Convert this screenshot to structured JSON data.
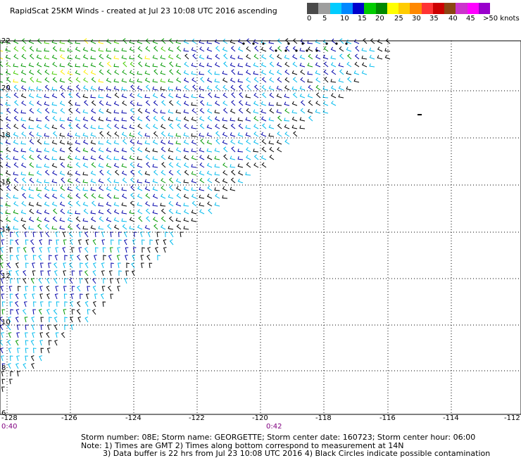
{
  "title": "RapidScat 25KM Winds - created at Jul 23 10:08 UTC 2016 ascending",
  "legend": {
    "colors": [
      "#4a4a4a",
      "#9e9e9e",
      "#00ccff",
      "#0088ff",
      "#0000cc",
      "#00cc00",
      "#008800",
      "#ffff00",
      "#ffcc00",
      "#ff8800",
      "#ff3333",
      "#cc0000",
      "#8b4513",
      "#cc33cc",
      "#ff00ff",
      "#9900cc"
    ],
    "ticks": [
      "0",
      "5",
      "10",
      "15",
      "20",
      "25",
      "30",
      "35",
      "40",
      "45",
      ">50 knots"
    ]
  },
  "map": {
    "lat_labels": [
      "22",
      "20",
      "18",
      "16",
      "14",
      "12",
      "10",
      "8",
      "6"
    ],
    "lon_labels": [
      "-128",
      "-126",
      "-124",
      "-122",
      "-120",
      "-118",
      "-116",
      "-114",
      "-112"
    ],
    "time_labels": [
      "0:40",
      "0:42"
    ],
    "barb_colors": [
      "#000000",
      "#00bbee",
      "#0000aa",
      "#009900",
      "#44cc00",
      "#ffee00"
    ],
    "contamination_color": "#000000"
  },
  "footer": {
    "line1": "Storm number: 08E;  Storm name: GEORGETTE;  Storm center date: 160723;  Storm center hour: 06:00",
    "line2": "Note: 1) Times are GMT  2) Times along bottom correspond to measurement at 14N",
    "line3": "3) Data buffer is 22 hrs from Jul 23 10:08 UTC 2016   4) Black Circles indicate possible contamination"
  }
}
